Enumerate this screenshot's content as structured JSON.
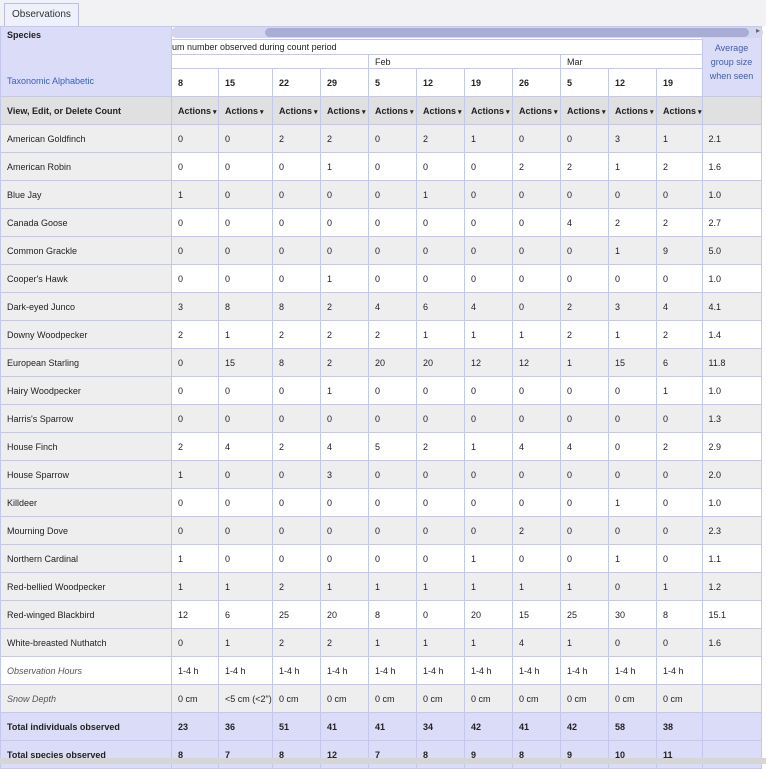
{
  "tab": "Observations",
  "header": {
    "species_label": "Species",
    "period_label": "um number observed during count period",
    "month_feb": "Feb",
    "month_mar": "Mar",
    "taxonomic_link": "Taxonomic Alphabetic",
    "avg_label": "Average group size when seen",
    "view_label": "View, Edit, or Delete Count",
    "actions_label": "Actions"
  },
  "dates": [
    "8",
    "15",
    "22",
    "29",
    "5",
    "12",
    "19",
    "26",
    "5",
    "12",
    "19"
  ],
  "species": [
    {
      "name": "American Goldfinch",
      "counts": [
        "0",
        "0",
        "2",
        "2",
        "0",
        "2",
        "1",
        "0",
        "0",
        "3",
        "1"
      ],
      "avg": "2.1"
    },
    {
      "name": "American Robin",
      "counts": [
        "0",
        "0",
        "0",
        "1",
        "0",
        "0",
        "0",
        "2",
        "2",
        "1",
        "2"
      ],
      "avg": "1.6"
    },
    {
      "name": "Blue Jay",
      "counts": [
        "1",
        "0",
        "0",
        "0",
        "0",
        "1",
        "0",
        "0",
        "0",
        "0",
        "0"
      ],
      "avg": "1.0"
    },
    {
      "name": "Canada Goose",
      "counts": [
        "0",
        "0",
        "0",
        "0",
        "0",
        "0",
        "0",
        "0",
        "4",
        "2",
        "2"
      ],
      "avg": "2.7"
    },
    {
      "name": "Common Grackle",
      "counts": [
        "0",
        "0",
        "0",
        "0",
        "0",
        "0",
        "0",
        "0",
        "0",
        "1",
        "9"
      ],
      "avg": "5.0"
    },
    {
      "name": "Cooper's Hawk",
      "counts": [
        "0",
        "0",
        "0",
        "1",
        "0",
        "0",
        "0",
        "0",
        "0",
        "0",
        "0"
      ],
      "avg": "1.0"
    },
    {
      "name": "Dark-eyed Junco",
      "counts": [
        "3",
        "8",
        "8",
        "2",
        "4",
        "6",
        "4",
        "0",
        "2",
        "3",
        "4"
      ],
      "avg": "4.1"
    },
    {
      "name": "Downy Woodpecker",
      "counts": [
        "2",
        "1",
        "2",
        "2",
        "2",
        "1",
        "1",
        "1",
        "2",
        "1",
        "2"
      ],
      "avg": "1.4"
    },
    {
      "name": "European Starling",
      "counts": [
        "0",
        "15",
        "8",
        "2",
        "20",
        "20",
        "12",
        "12",
        "1",
        "15",
        "6"
      ],
      "avg": "11.8"
    },
    {
      "name": "Hairy Woodpecker",
      "counts": [
        "0",
        "0",
        "0",
        "1",
        "0",
        "0",
        "0",
        "0",
        "0",
        "0",
        "1"
      ],
      "avg": "1.0"
    },
    {
      "name": "Harris's Sparrow",
      "counts": [
        "0",
        "0",
        "0",
        "0",
        "0",
        "0",
        "0",
        "0",
        "0",
        "0",
        "0"
      ],
      "avg": "1.3"
    },
    {
      "name": "House Finch",
      "counts": [
        "2",
        "4",
        "2",
        "4",
        "5",
        "2",
        "1",
        "4",
        "4",
        "0",
        "2"
      ],
      "avg": "2.9"
    },
    {
      "name": "House Sparrow",
      "counts": [
        "1",
        "0",
        "0",
        "3",
        "0",
        "0",
        "0",
        "0",
        "0",
        "0",
        "0"
      ],
      "avg": "2.0"
    },
    {
      "name": "Killdeer",
      "counts": [
        "0",
        "0",
        "0",
        "0",
        "0",
        "0",
        "0",
        "0",
        "0",
        "1",
        "0"
      ],
      "avg": "1.0"
    },
    {
      "name": "Mourning Dove",
      "counts": [
        "0",
        "0",
        "0",
        "0",
        "0",
        "0",
        "0",
        "2",
        "0",
        "0",
        "0"
      ],
      "avg": "2.3"
    },
    {
      "name": "Northern Cardinal",
      "counts": [
        "1",
        "0",
        "0",
        "0",
        "0",
        "0",
        "1",
        "0",
        "0",
        "1",
        "0"
      ],
      "avg": "1.1"
    },
    {
      "name": "Red-bellied Woodpecker",
      "counts": [
        "1",
        "1",
        "2",
        "1",
        "1",
        "1",
        "1",
        "1",
        "1",
        "0",
        "1"
      ],
      "avg": "1.2"
    },
    {
      "name": "Red-winged Blackbird",
      "counts": [
        "12",
        "6",
        "25",
        "20",
        "8",
        "0",
        "20",
        "15",
        "25",
        "30",
        "8"
      ],
      "avg": "15.1"
    },
    {
      "name": "White-breasted Nuthatch",
      "counts": [
        "0",
        "1",
        "2",
        "2",
        "1",
        "1",
        "1",
        "4",
        "1",
        "0",
        "0"
      ],
      "avg": "1.6"
    }
  ],
  "observation_hours": {
    "label": "Observation Hours",
    "values": [
      "1-4 h",
      "1-4 h",
      "1-4 h",
      "1-4 h",
      "1-4 h",
      "1-4 h",
      "1-4 h",
      "1-4 h",
      "1-4 h",
      "1-4 h",
      "1-4 h"
    ]
  },
  "snow_depth": {
    "label": "Snow Depth",
    "values": [
      "0 cm",
      "<5 cm (<2\")",
      "0 cm",
      "0 cm",
      "0 cm",
      "0 cm",
      "0 cm",
      "0 cm",
      "0 cm",
      "0 cm",
      "0 cm"
    ]
  },
  "total_individuals": {
    "label": "Total individuals observed",
    "values": [
      "23",
      "36",
      "51",
      "41",
      "41",
      "34",
      "42",
      "41",
      "42",
      "58",
      "38"
    ]
  },
  "total_species": {
    "label": "Total species observed",
    "values": [
      "8",
      "7",
      "8",
      "12",
      "7",
      "8",
      "9",
      "8",
      "9",
      "10",
      "11"
    ]
  }
}
